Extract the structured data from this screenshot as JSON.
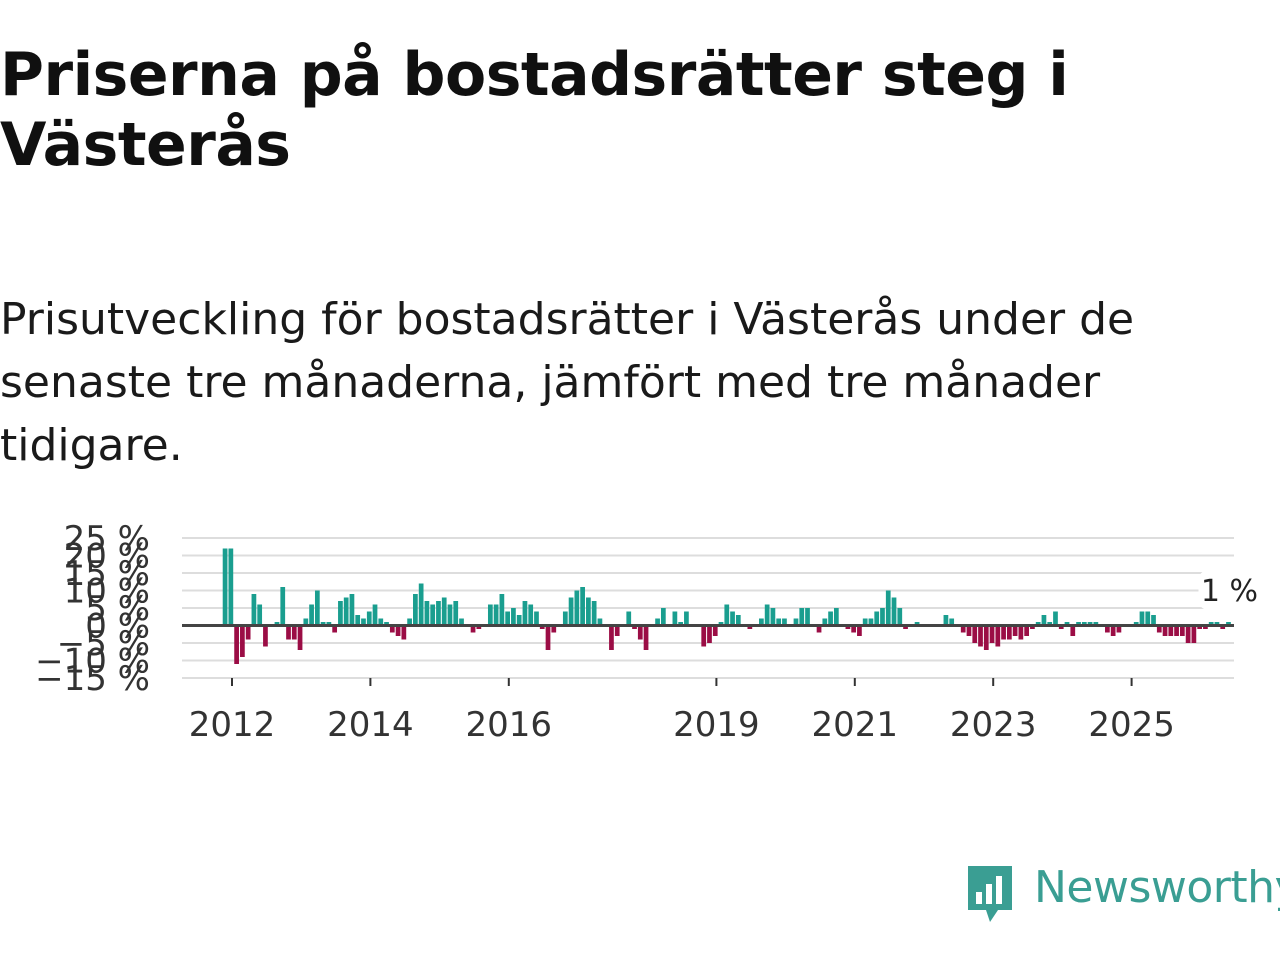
{
  "title": "Priserna på bostadsrätter steg i Västerås",
  "subtitle": "Prisutveckling för bostadsrätter i Västerås under de senaste tre månaderna, jämfört med tre månader tidigare.",
  "logo": {
    "icon": "bar-chart-speech-bubble-icon",
    "text": "Newsworthy"
  },
  "colors": {
    "positive": "#1a9e8f",
    "negative": "#9b0d45",
    "grid": "#dddddd",
    "zero": "#444444",
    "brand": "#3a9e93"
  },
  "chart_data": {
    "type": "bar",
    "title": "Priserna på bostadsrätter steg i Västerås",
    "xlabel": "",
    "ylabel": "",
    "ylim": [
      -15,
      25
    ],
    "y_ticks": [
      -15,
      -10,
      -5,
      0,
      5,
      10,
      15,
      20,
      25
    ],
    "y_tick_labels": [
      "−15 %",
      "−10 %",
      "−5 %",
      "0 %",
      "5 %",
      "10 %",
      "15 %",
      "20 %",
      "25 %"
    ],
    "x_ticks": [
      {
        "year": 2012,
        "label": "2012"
      },
      {
        "year": 2014,
        "label": "2014"
      },
      {
        "year": 2016,
        "label": "2016"
      },
      {
        "year": 2019,
        "label": "2019"
      },
      {
        "year": 2021,
        "label": "2021"
      },
      {
        "year": 2023,
        "label": "2023"
      },
      {
        "year": 2025,
        "label": "2025"
      }
    ],
    "x_start": 2011.9,
    "interval": "monthly",
    "grid": true,
    "annotation": {
      "text": "1 %",
      "position": "last-bar"
    },
    "values": [
      22,
      22,
      -11,
      -9,
      -4,
      9,
      6,
      -6,
      0,
      1,
      11,
      -4,
      -4,
      -7,
      2,
      6,
      10,
      1,
      1,
      -2,
      7,
      8,
      9,
      3,
      2,
      4,
      6,
      2,
      1,
      -2,
      -3,
      -4,
      2,
      9,
      12,
      7,
      6,
      7,
      8,
      6,
      7,
      2,
      0,
      -2,
      -1,
      0,
      6,
      6,
      9,
      4,
      5,
      3,
      7,
      6,
      4,
      -1,
      -7,
      -2,
      0,
      4,
      8,
      10,
      11,
      8,
      7,
      2,
      0,
      -7,
      -3,
      0,
      4,
      -1,
      -4,
      -7,
      0,
      2,
      5,
      0,
      4,
      1,
      4,
      0,
      0,
      -6,
      -5,
      -3,
      1,
      6,
      4,
      3,
      0,
      -1,
      0,
      2,
      6,
      5,
      2,
      2,
      0,
      2,
      5,
      5,
      0,
      -2,
      2,
      4,
      5,
      0,
      -1,
      -2,
      -3,
      2,
      2,
      4,
      5,
      10,
      8,
      5,
      -1,
      0,
      1,
      0,
      0,
      0,
      0,
      3,
      2,
      0,
      -2,
      -3,
      -5,
      -6,
      -7,
      -5,
      -6,
      -4,
      -4,
      -3,
      -4,
      -3,
      -1,
      1,
      3,
      1,
      4,
      -1,
      1,
      -3,
      1,
      1,
      1,
      1,
      0,
      -2,
      -3,
      -2,
      0,
      0,
      1,
      4,
      4,
      3,
      -2,
      -3,
      -3,
      -3,
      -3,
      -5,
      -5,
      -1,
      -1,
      1,
      1,
      -1,
      1
    ]
  }
}
